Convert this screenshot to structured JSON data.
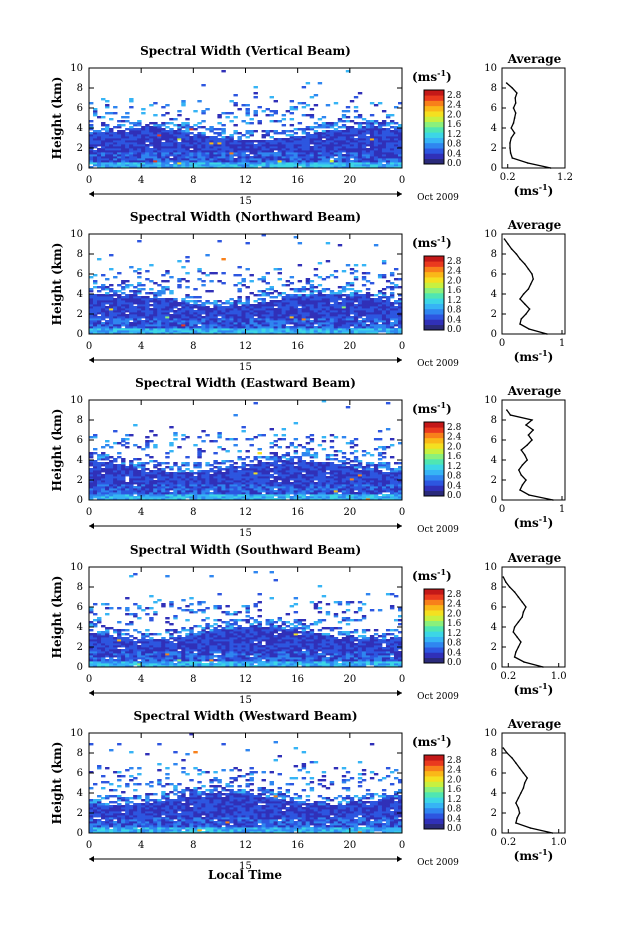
{
  "figure": {
    "xlabel": "Local Time",
    "ylabel": "Height (km)",
    "date_label": "Oct 2009",
    "day_label": "15",
    "unit_label": "(ms",
    "unit_exp": "-1",
    "avg_title": "Average",
    "avg_xlabel": "(ms",
    "colormap": [
      "#2a2a7a",
      "#3030b8",
      "#2d56e0",
      "#2f86f0",
      "#36b4f5",
      "#3cd6e6",
      "#4fe6b2",
      "#8af07c",
      "#c8f040",
      "#f4e020",
      "#fab818",
      "#f8801a",
      "#ea3a1e",
      "#c41818"
    ]
  },
  "chart_data": [
    {
      "type": "heatmap",
      "title": "Spectral Width (Vertical Beam)",
      "x_ticks": [
        "0",
        "4",
        "8",
        "12",
        "16",
        "20",
        "0"
      ],
      "xlim": [
        0,
        24
      ],
      "y_ticks": [
        "0",
        "2",
        "4",
        "6",
        "8",
        "10"
      ],
      "ylim": [
        0,
        10
      ],
      "colorbar": {
        "ticks": [
          "0.0",
          "0.4",
          "0.8",
          "1.2",
          "1.6",
          "2.0",
          "2.4",
          "2.8"
        ],
        "range": [
          0,
          2.8
        ]
      },
      "profile": {
        "title": "Average",
        "xlim": [
          0.1,
          1.2
        ],
        "x_ticks": [
          "0.2",
          "1.2"
        ],
        "x_tick_values": [
          0.2,
          1.2
        ],
        "heights": [
          0,
          0.5,
          1,
          1.5,
          2,
          2.5,
          3,
          3.5,
          4,
          4.5,
          5,
          5.5,
          6,
          6.5,
          7,
          7.5,
          8,
          8.5
        ],
        "values": [
          0.95,
          0.55,
          0.28,
          0.25,
          0.24,
          0.24,
          0.26,
          0.32,
          0.26,
          0.3,
          0.32,
          0.34,
          0.3,
          0.34,
          0.33,
          0.36,
          0.28,
          0.18
        ]
      }
    },
    {
      "type": "heatmap",
      "title": "Spectral Width (Northward Beam)",
      "x_ticks": [
        "0",
        "4",
        "8",
        "12",
        "16",
        "20",
        "0"
      ],
      "xlim": [
        0,
        24
      ],
      "y_ticks": [
        "0",
        "2",
        "4",
        "6",
        "8",
        "10"
      ],
      "ylim": [
        0,
        10
      ],
      "colorbar": {
        "ticks": [
          "0.0",
          "0.4",
          "0.8",
          "1.2",
          "1.6",
          "2.0",
          "2.4",
          "2.8"
        ],
        "range": [
          0,
          2.8
        ]
      },
      "profile": {
        "title": "Average",
        "xlim": [
          0,
          1.05
        ],
        "x_ticks": [
          "0",
          "1"
        ],
        "x_tick_values": [
          0,
          1
        ],
        "heights": [
          0,
          0.5,
          1,
          1.5,
          2,
          2.5,
          3,
          3.5,
          4,
          4.5,
          5,
          5.5,
          6,
          6.5,
          7,
          7.5,
          8,
          8.5,
          9,
          9.5
        ],
        "values": [
          0.75,
          0.45,
          0.3,
          0.32,
          0.4,
          0.46,
          0.38,
          0.3,
          0.36,
          0.44,
          0.48,
          0.52,
          0.5,
          0.44,
          0.38,
          0.3,
          0.24,
          0.16,
          0.1,
          0.04
        ]
      }
    },
    {
      "type": "heatmap",
      "title": "Spectral Width (Eastward Beam)",
      "x_ticks": [
        "0",
        "4",
        "8",
        "12",
        "16",
        "20",
        "0"
      ],
      "xlim": [
        0,
        24
      ],
      "y_ticks": [
        "0",
        "2",
        "4",
        "6",
        "8",
        "10"
      ],
      "ylim": [
        0,
        10
      ],
      "colorbar": {
        "ticks": [
          "0.0",
          "0.4",
          "0.8",
          "1.2",
          "1.6",
          "2.0",
          "2.4",
          "2.8"
        ],
        "range": [
          0,
          2.8
        ]
      },
      "profile": {
        "title": "Average",
        "xlim": [
          0,
          1.05
        ],
        "x_ticks": [
          "0",
          "1"
        ],
        "x_tick_values": [
          0,
          1
        ],
        "heights": [
          0,
          0.5,
          1,
          1.5,
          2,
          2.5,
          3,
          3.5,
          4,
          4.5,
          5,
          5.5,
          6,
          6.5,
          7,
          7.5,
          8,
          8.5,
          9
        ],
        "values": [
          0.85,
          0.45,
          0.3,
          0.34,
          0.4,
          0.32,
          0.28,
          0.34,
          0.42,
          0.38,
          0.32,
          0.42,
          0.5,
          0.44,
          0.52,
          0.4,
          0.5,
          0.14,
          0.08
        ]
      }
    },
    {
      "type": "heatmap",
      "title": "Spectral Width (Southward Beam)",
      "x_ticks": [
        "0",
        "4",
        "8",
        "12",
        "16",
        "20",
        "0"
      ],
      "xlim": [
        0,
        24
      ],
      "y_ticks": [
        "0",
        "2",
        "4",
        "6",
        "8",
        "10"
      ],
      "ylim": [
        0,
        10
      ],
      "colorbar": {
        "ticks": [
          "0.0",
          "0.4",
          "0.8",
          "1.2",
          "1.6",
          "2.0",
          "2.4",
          "2.8"
        ],
        "range": [
          0,
          2.8
        ]
      },
      "profile": {
        "title": "Average",
        "xlim": [
          0.1,
          1.1
        ],
        "x_ticks": [
          "0.2",
          "1.0"
        ],
        "x_tick_values": [
          0.2,
          1.0
        ],
        "heights": [
          0,
          0.5,
          1,
          1.5,
          2,
          2.5,
          3,
          3.5,
          4,
          4.5,
          5,
          5.5,
          6,
          6.5,
          7,
          7.5,
          8,
          8.5,
          9
        ],
        "values": [
          0.75,
          0.45,
          0.3,
          0.32,
          0.36,
          0.4,
          0.34,
          0.28,
          0.3,
          0.36,
          0.42,
          0.44,
          0.48,
          0.42,
          0.36,
          0.3,
          0.22,
          0.16,
          0.12
        ]
      }
    },
    {
      "type": "heatmap",
      "title": "Spectral Width (Westward Beam)",
      "x_ticks": [
        "0",
        "4",
        "8",
        "12",
        "16",
        "20",
        "0"
      ],
      "xlim": [
        0,
        24
      ],
      "y_ticks": [
        "0",
        "2",
        "4",
        "6",
        "8",
        "10"
      ],
      "ylim": [
        0,
        10
      ],
      "colorbar": {
        "ticks": [
          "0.0",
          "0.4",
          "0.8",
          "1.2",
          "1.6",
          "2.0",
          "2.4",
          "2.8"
        ],
        "range": [
          0,
          2.8
        ]
      },
      "profile": {
        "title": "Average",
        "xlim": [
          0.1,
          1.1
        ],
        "x_ticks": [
          "0.2",
          "1.0"
        ],
        "x_tick_values": [
          0.2,
          1.0
        ],
        "heights": [
          0,
          0.5,
          1,
          1.5,
          2,
          2.5,
          3,
          3.5,
          4,
          4.5,
          5,
          5.5,
          6,
          6.5,
          7,
          7.5,
          8,
          8.5
        ],
        "values": [
          0.9,
          0.55,
          0.32,
          0.34,
          0.38,
          0.36,
          0.32,
          0.36,
          0.4,
          0.44,
          0.46,
          0.5,
          0.44,
          0.38,
          0.32,
          0.26,
          0.18,
          0.12
        ]
      }
    }
  ]
}
